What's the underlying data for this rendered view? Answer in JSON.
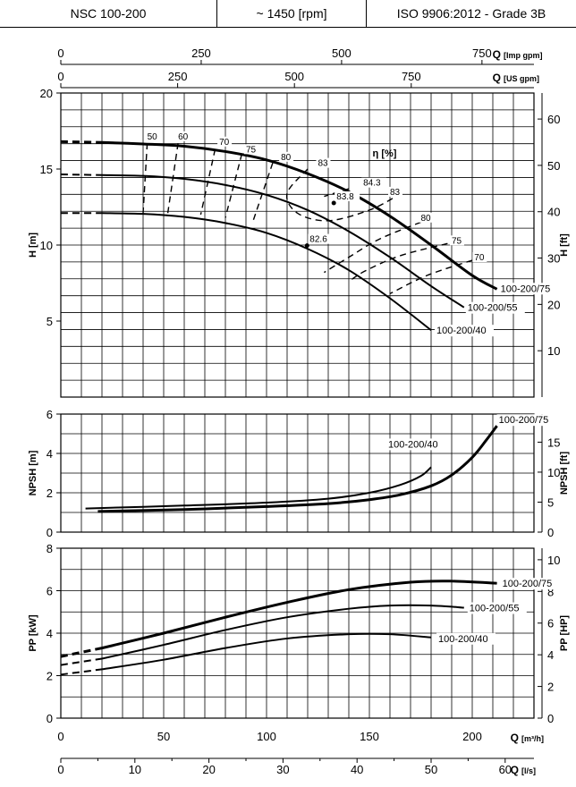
{
  "header": {
    "model": "NSC 100-200",
    "speed": "~ 1450 [rpm]",
    "standard": "ISO 9906:2012 - Grade 3B"
  },
  "chart_data": [
    {
      "type": "line",
      "panel": "head",
      "ylabel": "H [m]",
      "ylabel_right": "H [ft]",
      "ylim": [
        0,
        20
      ],
      "yticks": [
        5,
        10,
        15,
        20
      ],
      "yticks_right": [
        10,
        20,
        30,
        40,
        50,
        60
      ],
      "x_axes": [
        {
          "label": "Q [Imp gpm]",
          "ticks": [
            0,
            250,
            500,
            750
          ]
        },
        {
          "label": "Q [US gpm]",
          "ticks": [
            0,
            250,
            500,
            750
          ]
        }
      ],
      "x_unit": "Q [m³/h]",
      "series": [
        {
          "name": "100-200/75",
          "x": [
            0,
            20,
            40,
            60,
            80,
            100,
            120,
            140,
            160,
            180,
            200,
            212
          ],
          "y": [
            16.8,
            16.75,
            16.65,
            16.5,
            16.15,
            15.6,
            14.7,
            13.5,
            11.9,
            10.0,
            8.0,
            7.1
          ]
        },
        {
          "name": "100-200/55",
          "x": [
            0,
            20,
            40,
            60,
            80,
            100,
            120,
            140,
            160,
            180,
            196
          ],
          "y": [
            14.65,
            14.6,
            14.55,
            14.35,
            13.95,
            13.3,
            12.3,
            10.9,
            9.2,
            7.3,
            5.9
          ]
        },
        {
          "name": "100-200/40",
          "x": [
            0,
            20,
            40,
            60,
            80,
            100,
            120,
            140,
            160,
            180
          ],
          "y": [
            12.1,
            12.1,
            12.05,
            11.85,
            11.45,
            10.8,
            9.75,
            8.35,
            6.5,
            4.4
          ]
        }
      ],
      "efficiency_label": "η [%]",
      "efficiency_labels": [
        {
          "text": "50",
          "x": 42,
          "y": 16.95
        },
        {
          "text": "60",
          "x": 57,
          "y": 16.95
        },
        {
          "text": "70",
          "x": 77,
          "y": 16.6
        },
        {
          "text": "75",
          "x": 90,
          "y": 16.1
        },
        {
          "text": "80",
          "x": 107,
          "y": 15.6
        },
        {
          "text": "83",
          "x": 125,
          "y": 15.2
        },
        {
          "text": "84.3",
          "x": 147,
          "y": 13.9
        },
        {
          "text": "83",
          "x": 160,
          "y": 13.3
        },
        {
          "text": "83.8",
          "x": 134,
          "y": 13.0
        },
        {
          "text": "80",
          "x": 175,
          "y": 11.6
        },
        {
          "text": "75",
          "x": 190,
          "y": 10.1
        },
        {
          "text": "70",
          "x": 201,
          "y": 9.0
        },
        {
          "text": "82.6",
          "x": 121,
          "y": 10.2
        }
      ]
    },
    {
      "type": "line",
      "panel": "npsh",
      "ylabel": "NPSH [m]",
      "ylabel_right": "NPSH [ft]",
      "ylim": [
        0,
        6
      ],
      "yticks": [
        0,
        2,
        4,
        6
      ],
      "yticks_right": [
        0,
        5,
        10,
        15
      ],
      "series": [
        {
          "name": "100-200/75",
          "x": [
            18,
            60,
            100,
            130,
            150,
            165,
            180,
            190,
            200,
            207,
            212
          ],
          "y": [
            1.05,
            1.15,
            1.3,
            1.45,
            1.65,
            1.9,
            2.35,
            2.9,
            3.8,
            4.7,
            5.4
          ]
        },
        {
          "name": "100-200/40",
          "x": [
            12,
            60,
            100,
            130,
            150,
            165,
            175,
            180
          ],
          "y": [
            1.2,
            1.35,
            1.5,
            1.7,
            2.0,
            2.4,
            2.85,
            3.3
          ]
        }
      ]
    },
    {
      "type": "line",
      "panel": "power",
      "ylabel": "PP [kW]",
      "ylabel_right": "PP [HP]",
      "ylim": [
        0,
        8
      ],
      "yticks": [
        0,
        2,
        4,
        6,
        8
      ],
      "yticks_right": [
        0,
        2,
        4,
        6,
        8,
        10
      ],
      "xlabel": "Q [m³/h]",
      "xticks": [
        0,
        50,
        100,
        150,
        200
      ],
      "x_axes_bottom": [
        {
          "label": "Q [l/s]",
          "ticks": [
            0,
            10,
            20,
            30,
            40,
            50,
            60
          ]
        }
      ],
      "series": [
        {
          "name": "100-200/75",
          "x": [
            0,
            20,
            50,
            80,
            110,
            140,
            170,
            190,
            212
          ],
          "y": [
            2.9,
            3.3,
            4.0,
            4.75,
            5.45,
            6.05,
            6.4,
            6.45,
            6.35
          ]
        },
        {
          "name": "100-200/55",
          "x": [
            0,
            20,
            50,
            80,
            110,
            140,
            160,
            180,
            196
          ],
          "y": [
            2.5,
            2.8,
            3.45,
            4.15,
            4.75,
            5.15,
            5.3,
            5.3,
            5.2
          ]
        },
        {
          "name": "100-200/40",
          "x": [
            0,
            20,
            50,
            80,
            110,
            140,
            160,
            180
          ],
          "y": [
            2.05,
            2.3,
            2.75,
            3.3,
            3.75,
            3.95,
            3.95,
            3.8
          ]
        }
      ]
    }
  ]
}
